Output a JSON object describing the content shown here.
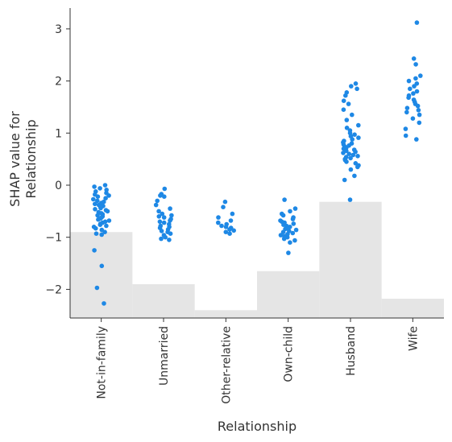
{
  "chart_data": {
    "type": "scatter",
    "xlabel": "Relationship",
    "ylabel": "SHAP value for\nRelationship",
    "categories": [
      "Not-in-family",
      "Unmarried",
      "Other-relative",
      "Own-child",
      "Husband",
      "Wife"
    ],
    "yticks": [
      3,
      2,
      1,
      0,
      -1,
      -2
    ],
    "ylim": [
      -2.55,
      3.4
    ],
    "grid": false,
    "legend": "none",
    "background_histogram": {
      "baseline": -2.55,
      "tops": [
        -0.9,
        -1.9,
        -2.4,
        -1.65,
        -0.32,
        -2.18
      ]
    },
    "series": [
      {
        "category": "Not-in-family",
        "y": [
          0.0,
          -0.03,
          -0.06,
          -0.09,
          -0.12,
          -0.15,
          -0.18,
          -0.2,
          -0.22,
          -0.25,
          -0.27,
          -0.3,
          -0.32,
          -0.34,
          -0.36,
          -0.38,
          -0.4,
          -0.42,
          -0.44,
          -0.46,
          -0.48,
          -0.5,
          -0.52,
          -0.54,
          -0.56,
          -0.58,
          -0.6,
          -0.62,
          -0.64,
          -0.66,
          -0.68,
          -0.7,
          -0.72,
          -0.74,
          -0.76,
          -0.78,
          -0.8,
          -0.83,
          -0.86,
          -0.9,
          -0.93,
          -0.95,
          -1.25,
          -1.55,
          -1.97,
          -2.27
        ]
      },
      {
        "category": "Unmarried",
        "y": [
          -0.07,
          -0.17,
          -0.2,
          -0.22,
          -0.3,
          -0.38,
          -0.45,
          -0.5,
          -0.55,
          -0.58,
          -0.6,
          -0.62,
          -0.65,
          -0.68,
          -0.7,
          -0.72,
          -0.75,
          -0.78,
          -0.8,
          -0.82,
          -0.85,
          -0.88,
          -0.9,
          -0.93,
          -0.96,
          -1.0,
          -1.03,
          -1.05
        ]
      },
      {
        "category": "Other-relative",
        "y": [
          -0.32,
          -0.42,
          -0.55,
          -0.62,
          -0.68,
          -0.72,
          -0.75,
          -0.78,
          -0.8,
          -0.82,
          -0.85,
          -0.87,
          -0.9,
          -0.93
        ]
      },
      {
        "category": "Own-child",
        "y": [
          -0.28,
          -0.45,
          -0.5,
          -0.55,
          -0.58,
          -0.62,
          -0.65,
          -0.68,
          -0.7,
          -0.72,
          -0.74,
          -0.76,
          -0.78,
          -0.8,
          -0.82,
          -0.84,
          -0.86,
          -0.88,
          -0.9,
          -0.92,
          -0.94,
          -0.96,
          -0.98,
          -1.0,
          -1.03,
          -1.06,
          -1.1,
          -1.3
        ]
      },
      {
        "category": "Husband",
        "y": [
          1.95,
          1.9,
          1.85,
          1.78,
          1.72,
          1.62,
          1.56,
          1.45,
          1.35,
          1.25,
          1.15,
          1.1,
          1.05,
          1.0,
          0.97,
          0.94,
          0.91,
          0.88,
          0.85,
          0.82,
          0.8,
          0.78,
          0.76,
          0.74,
          0.72,
          0.7,
          0.68,
          0.66,
          0.64,
          0.62,
          0.6,
          0.58,
          0.56,
          0.54,
          0.52,
          0.5,
          0.48,
          0.45,
          0.42,
          0.38,
          0.35,
          0.3,
          0.18,
          0.1,
          -0.28
        ]
      },
      {
        "category": "Wife",
        "y": [
          3.12,
          2.43,
          2.32,
          2.1,
          2.05,
          2.0,
          1.95,
          1.9,
          1.85,
          1.8,
          1.76,
          1.72,
          1.68,
          1.64,
          1.6,
          1.56,
          1.52,
          1.48,
          1.44,
          1.4,
          1.35,
          1.28,
          1.2,
          1.08,
          0.95,
          0.88
        ]
      }
    ],
    "colors": {
      "point": "#1e88e5",
      "histogram": "#e5e5e5",
      "axis": "#333333"
    }
  }
}
